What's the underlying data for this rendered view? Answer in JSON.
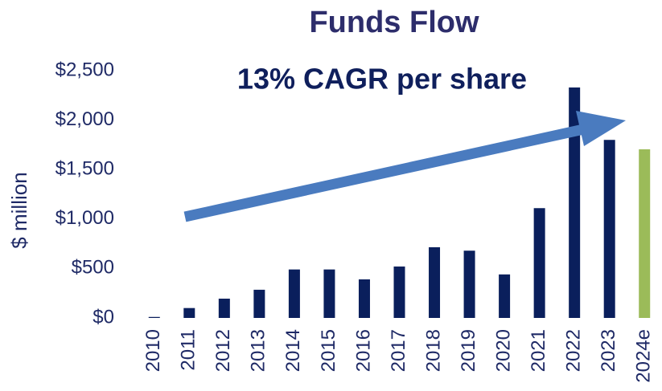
{
  "chart_data": {
    "type": "bar",
    "title": "Funds Flow",
    "subtitle": "13% CAGR per share",
    "y_label": "$ million",
    "categories": [
      "2010",
      "2011",
      "2012",
      "2013",
      "2014",
      "2015",
      "2016",
      "2017",
      "2018",
      "2019",
      "2020",
      "2021",
      "2022",
      "2023",
      "2024e"
    ],
    "values": [
      10,
      100,
      195,
      285,
      490,
      490,
      390,
      520,
      715,
      680,
      440,
      1110,
      2330,
      1800,
      1705
    ],
    "colors": [
      "#0a1f5c",
      "#0a1f5c",
      "#0a1f5c",
      "#0a1f5c",
      "#0a1f5c",
      "#0a1f5c",
      "#0a1f5c",
      "#0a1f5c",
      "#0a1f5c",
      "#0a1f5c",
      "#0a1f5c",
      "#0a1f5c",
      "#0a1f5c",
      "#0a1f5c",
      "#9bbb59"
    ],
    "ylim": [
      0,
      2500
    ],
    "yticks": [
      {
        "value": 0,
        "label": "$0"
      },
      {
        "value": 500,
        "label": "$500"
      },
      {
        "value": 1000,
        "label": "$1,000"
      },
      {
        "value": 1500,
        "label": "$1,500"
      },
      {
        "value": 2000,
        "label": "$2,000"
      },
      {
        "value": 2500,
        "label": "$2,500"
      }
    ],
    "grid": false
  }
}
